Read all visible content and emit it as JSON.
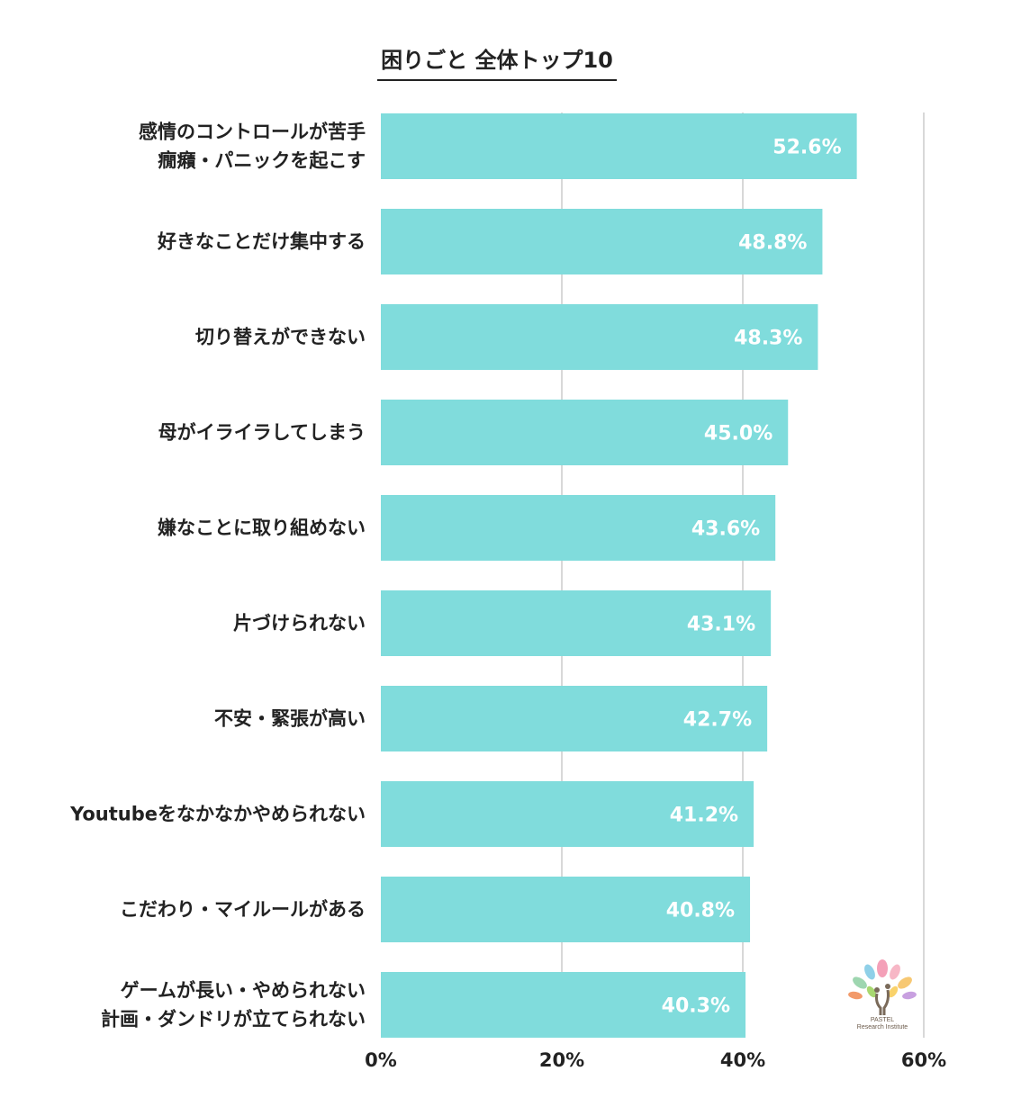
{
  "chart_data": {
    "type": "bar",
    "orientation": "horizontal",
    "title": "困りごと 全体トップ10",
    "categories": [
      [
        "感情のコントロールが苦手",
        "癇癪・パニックを起こす"
      ],
      [
        "好きなことだけ集中する"
      ],
      [
        "切り替えができない"
      ],
      [
        "母がイライラしてしまう"
      ],
      [
        "嫌なことに取り組めない"
      ],
      [
        "片づけられない"
      ],
      [
        "不安・緊張が高い"
      ],
      [
        "Youtubeをなかなかやめられない"
      ],
      [
        "こだわり・マイルールがある"
      ],
      [
        "ゲームが長い・やめられない",
        "計画・ダンドリが立てられない"
      ]
    ],
    "values": [
      52.6,
      48.8,
      48.3,
      45.0,
      43.6,
      43.1,
      42.7,
      41.2,
      40.8,
      40.3
    ],
    "value_labels": [
      "52.6%",
      "48.8%",
      "48.3%",
      "45.0%",
      "43.6%",
      "43.1%",
      "42.7%",
      "41.2%",
      "40.8%",
      "40.3%"
    ],
    "xlim": [
      0,
      60
    ],
    "xticks": [
      0,
      20,
      40,
      60
    ],
    "xtick_labels": [
      "0%",
      "20%",
      "40%",
      "60%"
    ],
    "grid": true,
    "legend": "none"
  },
  "colors": {
    "bar": "#80dcdc",
    "grid": "#cccccc",
    "text": "#222222",
    "value_text": "#ffffff"
  },
  "logo": {
    "name": "pastel-tree-logo",
    "lines": [
      "PASTEL",
      "Research Institute"
    ]
  }
}
